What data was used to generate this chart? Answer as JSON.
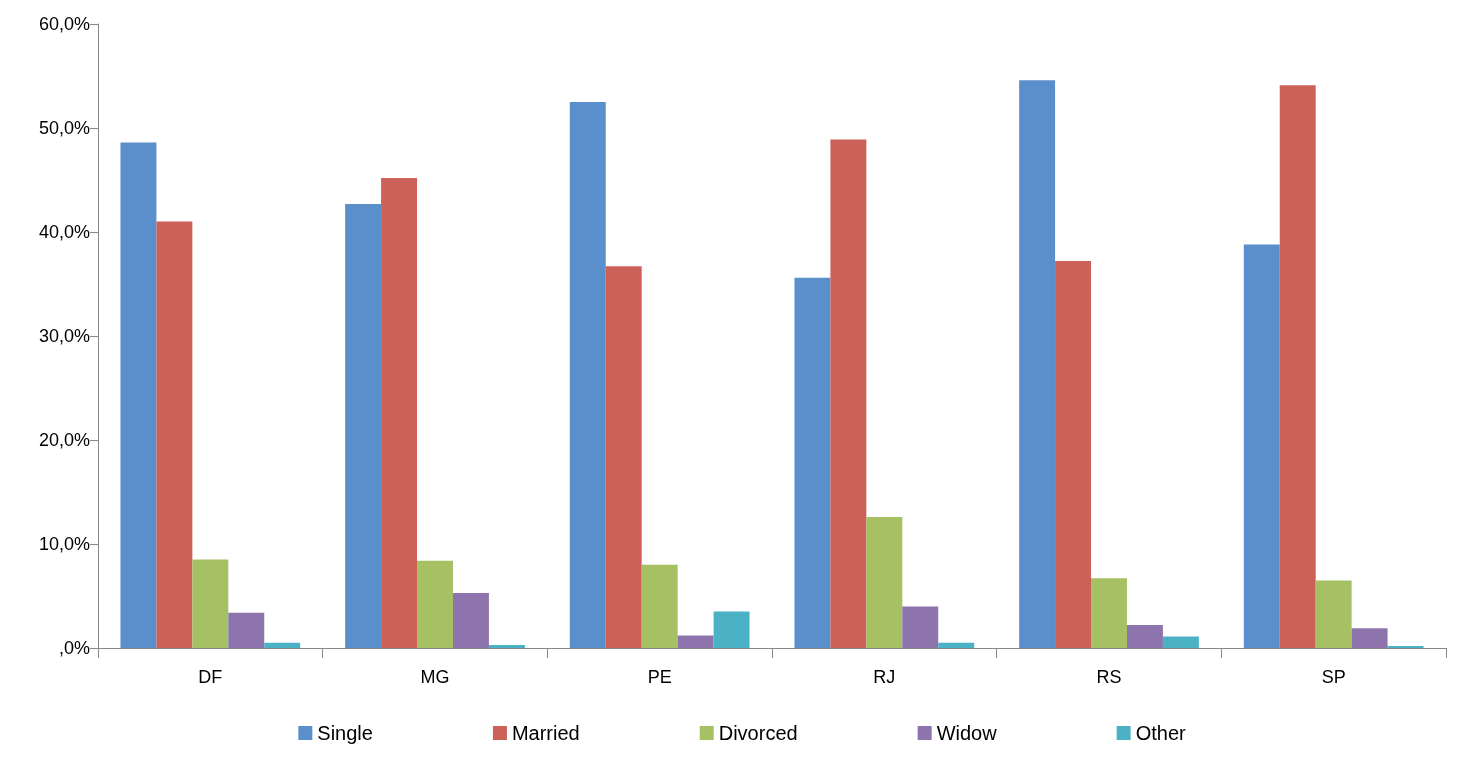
{
  "chart_data": {
    "type": "bar",
    "categories": [
      "DF",
      "MG",
      "PE",
      "RJ",
      "RS",
      "SP"
    ],
    "series": [
      {
        "name": "Single",
        "color": "#5b8fcb",
        "values": [
          48.6,
          42.7,
          52.5,
          35.6,
          54.6,
          38.8
        ]
      },
      {
        "name": "Married",
        "color": "#cb6158",
        "values": [
          41.0,
          45.2,
          36.7,
          48.9,
          37.2,
          54.1
        ]
      },
      {
        "name": "Divorced",
        "color": "#a6c064",
        "values": [
          8.5,
          8.4,
          8.0,
          12.6,
          6.7,
          6.5
        ]
      },
      {
        "name": "Widow",
        "color": "#8e74ad",
        "values": [
          3.4,
          5.3,
          1.2,
          4.0,
          2.2,
          1.9
        ]
      },
      {
        "name": "Other",
        "color": "#4bb2c6",
        "values": [
          0.5,
          0.3,
          3.5,
          0.5,
          1.1,
          0.2
        ]
      }
    ],
    "ylim": [
      0,
      60
    ],
    "yticks": [
      {
        "value": 0,
        "label": ",0%"
      },
      {
        "value": 10,
        "label": "10,0%"
      },
      {
        "value": 20,
        "label": "20,0%"
      },
      {
        "value": 30,
        "label": "30,0%"
      },
      {
        "value": 40,
        "label": "40,0%"
      },
      {
        "value": 50,
        "label": "50,0%"
      },
      {
        "value": 60,
        "label": "60,0%"
      }
    ],
    "grid": false,
    "legend": "bottom"
  }
}
